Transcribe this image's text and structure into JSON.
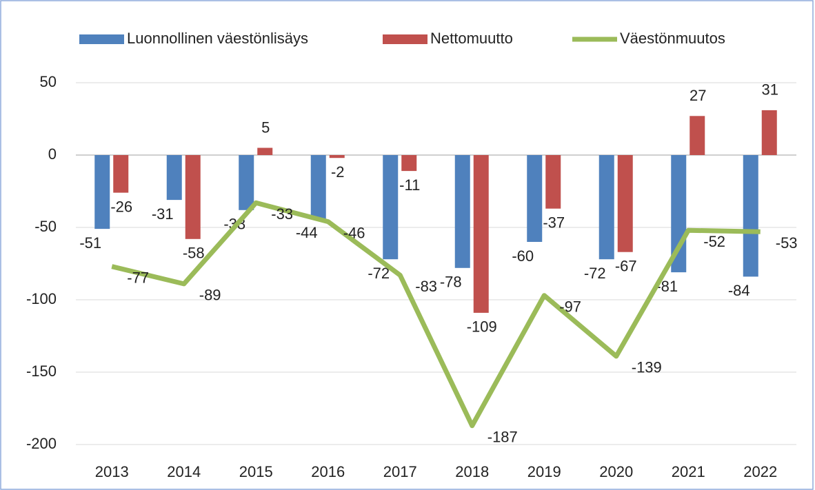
{
  "chart_data": {
    "type": "bar_line",
    "categories": [
      "2013",
      "2014",
      "2015",
      "2016",
      "2017",
      "2018",
      "2019",
      "2020",
      "2021",
      "2022"
    ],
    "series": [
      {
        "name": "Luonnollinen väestönlisäys",
        "type": "bar",
        "color": "#4f81bd",
        "values": [
          -51,
          -31,
          -38,
          -44,
          -72,
          -78,
          -60,
          -72,
          -81,
          -84
        ]
      },
      {
        "name": "Nettomuutto",
        "type": "bar",
        "color": "#c0504d",
        "values": [
          -26,
          -58,
          5,
          -2,
          -11,
          -109,
          -37,
          -67,
          27,
          31
        ]
      },
      {
        "name": "Väestönmuutos",
        "type": "line",
        "color": "#9bbb59",
        "values": [
          -77,
          -89,
          -33,
          -46,
          -83,
          -187,
          -97,
          -139,
          -52,
          -53
        ]
      }
    ],
    "ylim": [
      -200,
      60
    ],
    "yticks": [
      -200,
      -150,
      -100,
      -50,
      0,
      50
    ],
    "grid": true,
    "legend": "top"
  }
}
